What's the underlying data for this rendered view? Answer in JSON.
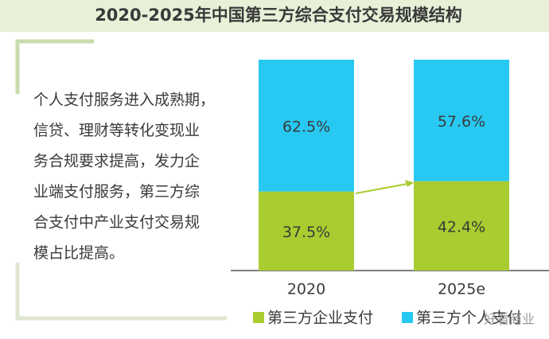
{
  "chart_data": {
    "type": "stacked_bar",
    "title": "2020-2025年中国第三方综合支付交易规模结构",
    "description_lines": [
      "个人支付服务进入成熟期，",
      "信贷、理财等转化变现业",
      "务合规要求提高，发力企",
      "业端支付服务，第三方综",
      "合支付中产业支付交易规",
      "模占比提高。"
    ],
    "categories": [
      "2020",
      "2025e"
    ],
    "series": [
      {
        "name": "第三方企业支付",
        "color": "#a9cc30",
        "values": [
          37.5,
          42.4
        ],
        "value_labels": [
          "37.5%",
          "42.4%"
        ]
      },
      {
        "name": "第三方个人支付",
        "color": "#27c9f2",
        "values": [
          62.5,
          57.6
        ],
        "value_labels": [
          "62.5%",
          "57.6%"
        ]
      }
    ],
    "ylim": [
      0,
      100
    ],
    "watermark": "好看商业"
  }
}
